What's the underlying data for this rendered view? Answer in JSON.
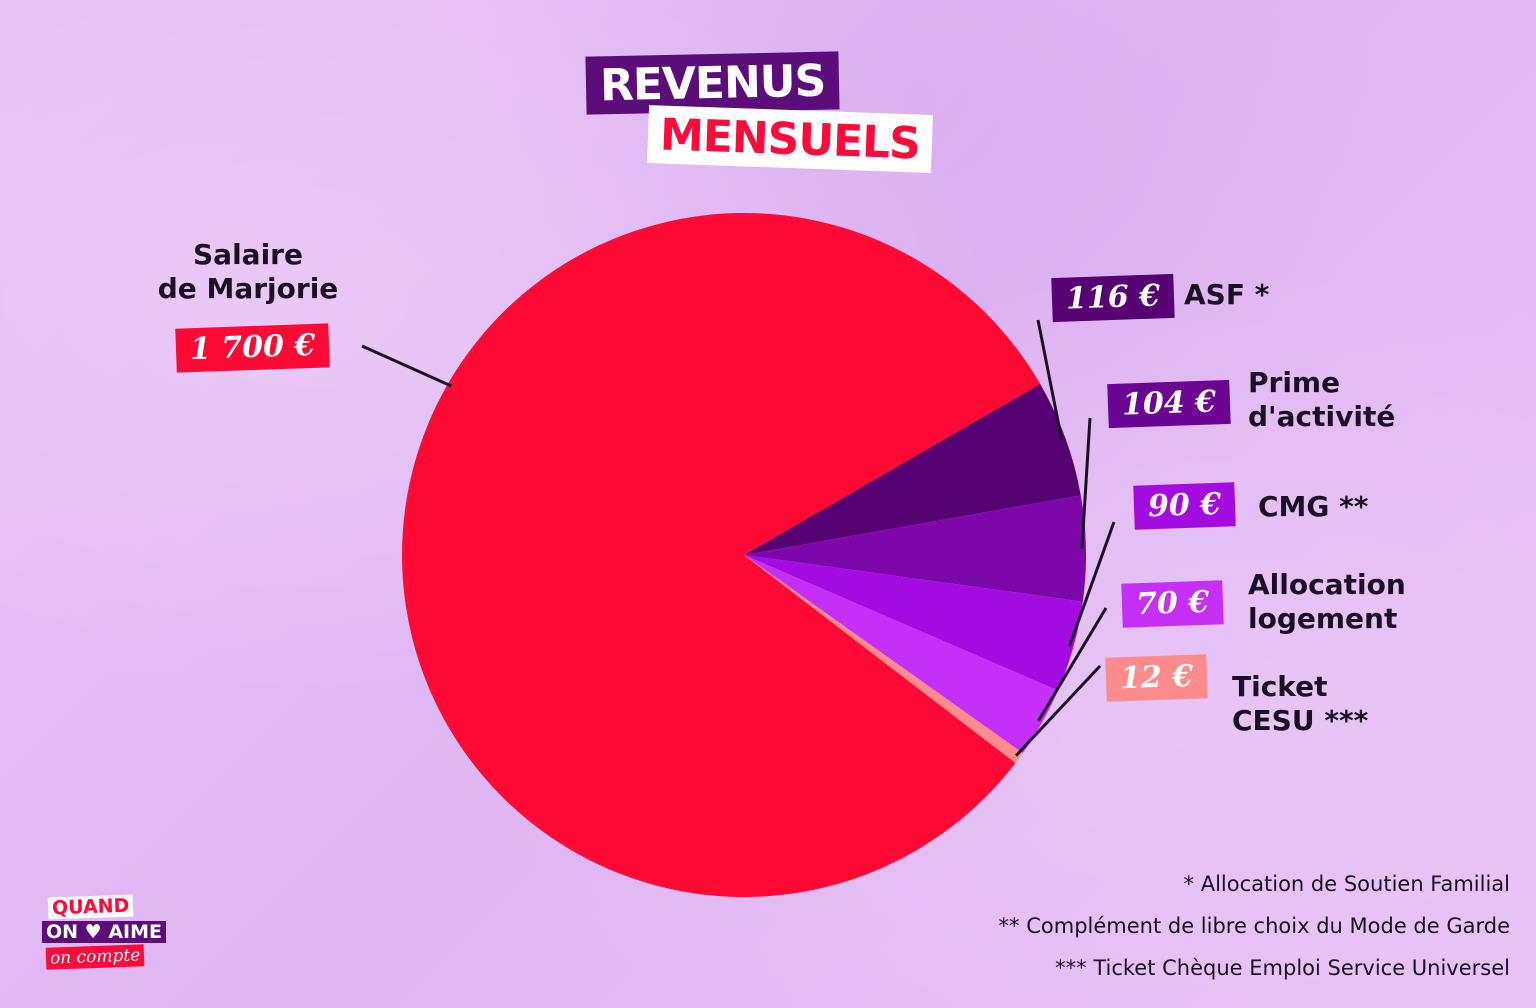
{
  "title": {
    "line1": "REVENUS",
    "line2": "MENSUELS"
  },
  "chart_data": {
    "type": "pie",
    "title": "REVENUS MENSUELS",
    "unit": "€",
    "slices": [
      {
        "label": "Salaire de Marjorie",
        "label_lines": [
          "Salaire",
          "de Marjorie"
        ],
        "value": 1700,
        "display": "1 700 €",
        "color": "#ff0a35"
      },
      {
        "label": "ASF *",
        "label_lines": [
          "ASF *"
        ],
        "value": 116,
        "display": "116 €",
        "color": "#570273"
      },
      {
        "label": "Prime d'activité",
        "label_lines": [
          "Prime",
          "d'activité"
        ],
        "value": 104,
        "display": "104 €",
        "color": "#7e07ab"
      },
      {
        "label": "CMG **",
        "label_lines": [
          "CMG **"
        ],
        "value": 90,
        "display": "90 €",
        "color": "#a30be0"
      },
      {
        "label": "Allocation logement",
        "label_lines": [
          "Allocation",
          "logement"
        ],
        "value": 70,
        "display": "70 €",
        "color": "#c62ff8"
      },
      {
        "label": "Ticket CESU ***",
        "label_lines": [
          "Ticket",
          "CESU ***"
        ],
        "value": 12,
        "display": "12 €",
        "color": "#ff8c8c"
      }
    ],
    "legend": "none"
  },
  "footnotes": [
    "* Allocation de Soutien Familial",
    "** Complément de libre choix du Mode de Garde",
    "*** Ticket Chèque Emploi Service Universel"
  ],
  "logo": {
    "line1": "QUAND",
    "line2": "ON ♥ AIME",
    "line3": "on compte"
  }
}
